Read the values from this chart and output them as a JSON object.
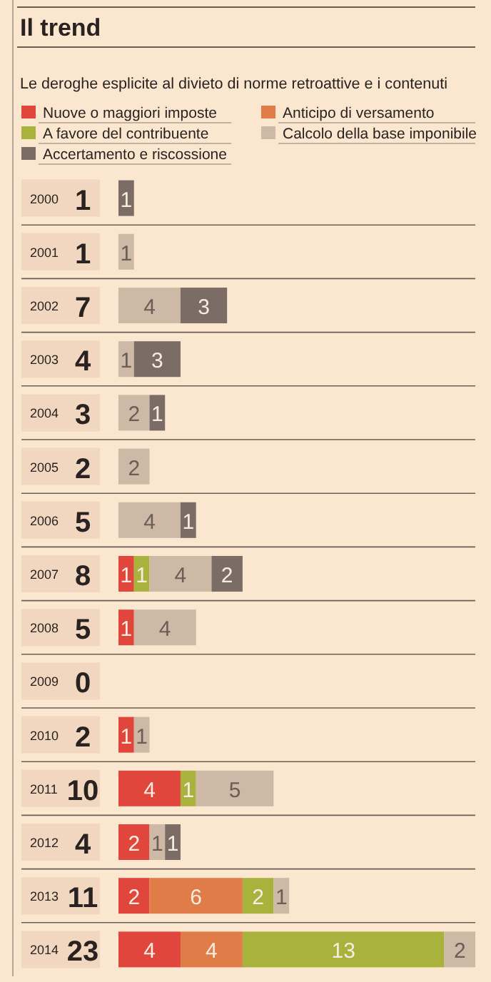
{
  "chart_data": {
    "type": "bar",
    "orientation": "horizontal",
    "stacked": true,
    "data_labels": true,
    "legend": "top",
    "title": "Il trend",
    "subtitle": "Le deroghe esplicite al divieto di norme retroattive e i contenuti",
    "categories": [
      "2000",
      "2001",
      "2002",
      "2003",
      "2004",
      "2005",
      "2006",
      "2007",
      "2008",
      "2009",
      "2010",
      "2011",
      "2012",
      "2013",
      "2014"
    ],
    "totals": [
      "1",
      "1",
      "7",
      "4",
      "3",
      "2",
      "5",
      "8",
      "5",
      "0",
      "2",
      "10",
      "4",
      "11",
      "23"
    ],
    "series": [
      {
        "name": "Nuove o maggiori imposte",
        "color": "#e0463b",
        "values": [
          null,
          null,
          null,
          null,
          null,
          null,
          null,
          1,
          1,
          null,
          1,
          4,
          2,
          2,
          4
        ]
      },
      {
        "name": "Anticipo di versamento",
        "color": "#e07c48",
        "values": [
          null,
          null,
          null,
          null,
          null,
          null,
          null,
          null,
          null,
          null,
          null,
          null,
          null,
          6,
          4
        ]
      },
      {
        "name": "A favore del contribuente",
        "color": "#a9b23c",
        "values": [
          null,
          null,
          null,
          null,
          null,
          null,
          null,
          1,
          null,
          null,
          null,
          1,
          null,
          2,
          13
        ]
      },
      {
        "name": "Calcolo della base imponibile",
        "color": "#ceb8a6",
        "values": [
          null,
          1,
          4,
          1,
          2,
          2,
          4,
          4,
          4,
          null,
          1,
          5,
          1,
          1,
          2
        ]
      },
      {
        "name": "Accertamento e riscossione",
        "color": "#7b6d65",
        "values": [
          1,
          null,
          3,
          3,
          1,
          null,
          1,
          2,
          null,
          null,
          null,
          null,
          1,
          null,
          null
        ]
      }
    ]
  }
}
